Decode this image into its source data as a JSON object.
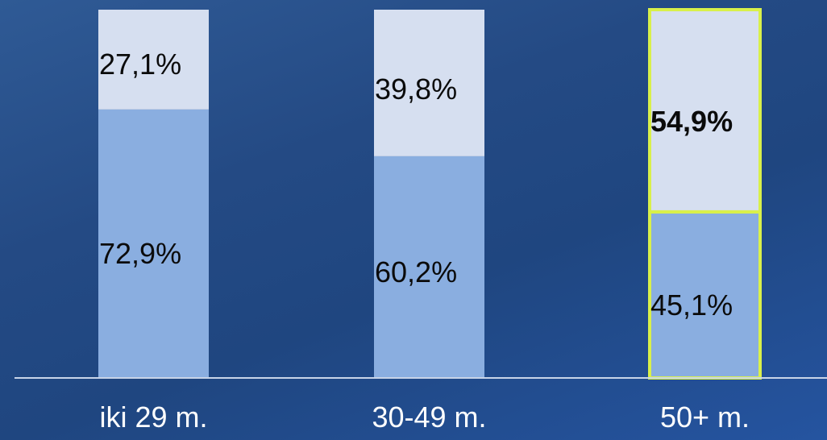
{
  "chart_data": {
    "type": "bar",
    "stacked": true,
    "categories": [
      "iki 29 m.",
      "30-49 m.",
      "50+ m."
    ],
    "series": [
      {
        "values": [
          72.9,
          60.2,
          45.1
        ],
        "labels": [
          "72,9%",
          "60,2%",
          "45,1%"
        ],
        "color": "#8aaee0"
      },
      {
        "values": [
          27.1,
          39.8,
          54.9
        ],
        "labels": [
          "27,1%",
          "39,8%",
          "54,9%"
        ],
        "color": "#d6dff0"
      }
    ],
    "highlighted_category": "50+ m.",
    "highlight_color": "#d9f04a",
    "bold_labels": [
      "54,9%"
    ],
    "ylim": [
      0,
      100
    ],
    "grid": false,
    "legend": "none",
    "baseline_color": "#c8d4e8",
    "label_color": "#0b0b0b",
    "category_label_color": "#ffffff"
  }
}
